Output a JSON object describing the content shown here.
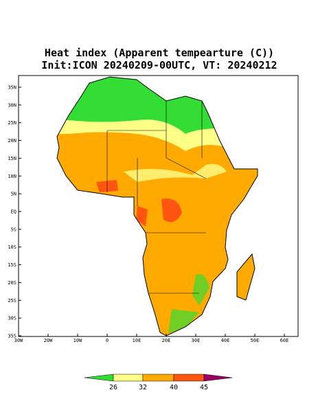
{
  "title": [
    "Heat index (Apparent tempearture (C))",
    "Init:ICON 20240209-00UTC, VT: 20240212"
  ],
  "map": {
    "lat_ticks": [
      "35N",
      "30N",
      "25N",
      "20N",
      "15N",
      "10N",
      "5N",
      "EQ",
      "5S",
      "10S",
      "15S",
      "20S",
      "25S",
      "30S",
      "35S"
    ],
    "lon_ticks": [
      "30W",
      "20W",
      "10W",
      "0",
      "10E",
      "20E",
      "30E",
      "40E",
      "50E",
      "60E"
    ]
  },
  "colorbar": {
    "labels": [
      "26",
      "32",
      "40",
      "45"
    ],
    "colors": [
      "#33dd33",
      "#ffff88",
      "#ffaa00",
      "#ff5511",
      "#990066"
    ]
  }
}
